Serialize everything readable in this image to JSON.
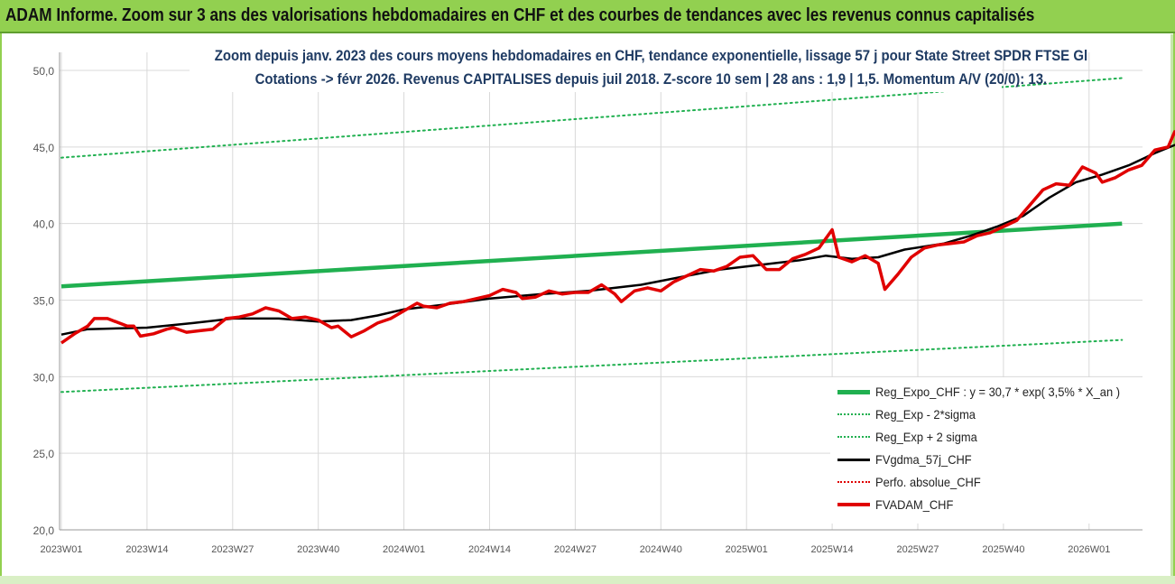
{
  "banner": {
    "title": "ADAM Informe. Zoom sur 3 ans des valorisations hebdomadaires en CHF et des courbes de tendances avec les revenus connus capitalisés"
  },
  "colors": {
    "banner": "#92d050",
    "reg_expo": "#20b050",
    "sigma": "#20b050",
    "fvgdma": "#000000",
    "fvadam": "#e00000",
    "grid": "#d9d9d9"
  },
  "chart_data": {
    "type": "line",
    "title": "Zoom depuis janv. 2023 des cours moyens hebdomadaires en CHF, tendance exponentielle, lissage 57 j pour State Street SPDR FTSE Gl",
    "subtitle": "Cotations -> févr 2026. Revenus CAPITALISES depuis juil 2018. Z-score 10 sem | 28 ans : 1,9 | 1,5. Momentum A/V (20/0): 13.",
    "xlabel": "",
    "ylabel": "",
    "ylim": [
      20,
      50
    ],
    "yticks": [
      "20,0",
      "25,0",
      "30,0",
      "35,0",
      "40,0",
      "45,0",
      "50,0"
    ],
    "xticks": [
      "2023W01",
      "2023W14",
      "2023W27",
      "2023W40",
      "2024W01",
      "2024W14",
      "2024W27",
      "2024W40",
      "2025W01",
      "2025W14",
      "2025W27",
      "2025W40",
      "2026W01"
    ],
    "grid": true,
    "legend_position": "bottom-right",
    "n_weeks": 162,
    "series": [
      {
        "name": "Reg_Expo_CHF : y = 30,7 * exp( 3,5% *  X_an )",
        "style": "thick-solid",
        "color": "#20b050",
        "points": [
          [
            0,
            35.9
          ],
          [
            161,
            40.0
          ]
        ]
      },
      {
        "name": "Reg_Exp - 2*sigma",
        "style": "dotted",
        "color": "#20b050",
        "points": [
          [
            0,
            29.0
          ],
          [
            161,
            32.4
          ]
        ]
      },
      {
        "name": "Reg_Exp + 2 sigma",
        "style": "dotted",
        "color": "#20b050",
        "points": [
          [
            0,
            44.3
          ],
          [
            161,
            49.5
          ]
        ]
      },
      {
        "name": "FVgdma_57j_CHF",
        "style": "solid",
        "color": "#000000",
        "points": [
          [
            0,
            32.75
          ],
          [
            4,
            33.1
          ],
          [
            13,
            33.2
          ],
          [
            20,
            33.5
          ],
          [
            26,
            33.8
          ],
          [
            33,
            33.8
          ],
          [
            39,
            33.6
          ],
          [
            44,
            33.7
          ],
          [
            48,
            34.0
          ],
          [
            52,
            34.4
          ],
          [
            58,
            34.7
          ],
          [
            65,
            35.1
          ],
          [
            73,
            35.4
          ],
          [
            80,
            35.6
          ],
          [
            88,
            36.0
          ],
          [
            94,
            36.5
          ],
          [
            100,
            37.0
          ],
          [
            106,
            37.3
          ],
          [
            112,
            37.6
          ],
          [
            116,
            37.9
          ],
          [
            120,
            37.7
          ],
          [
            124,
            37.8
          ],
          [
            128,
            38.3
          ],
          [
            134,
            38.7
          ],
          [
            138,
            39.2
          ],
          [
            142,
            39.8
          ],
          [
            146,
            40.5
          ],
          [
            150,
            41.7
          ],
          [
            154,
            42.7
          ],
          [
            158,
            43.2
          ],
          [
            162,
            43.8
          ],
          [
            166,
            44.6
          ],
          [
            170,
            45.3
          ],
          [
            174,
            45.7
          ]
        ]
      },
      {
        "name": "Perfo. absolue_CHF",
        "style": "dotted",
        "color": "#e00000",
        "points": []
      },
      {
        "name": "FVADAM_CHF",
        "style": "thick-solid",
        "color": "#e00000",
        "points": [
          [
            0,
            32.2
          ],
          [
            2,
            32.8
          ],
          [
            4,
            33.3
          ],
          [
            5,
            33.8
          ],
          [
            7,
            33.8
          ],
          [
            10,
            33.3
          ],
          [
            11,
            33.3
          ],
          [
            12,
            32.65
          ],
          [
            14,
            32.8
          ],
          [
            16,
            33.1
          ],
          [
            17,
            33.2
          ],
          [
            19,
            32.9
          ],
          [
            21,
            33.0
          ],
          [
            23,
            33.1
          ],
          [
            25,
            33.8
          ],
          [
            27,
            33.9
          ],
          [
            29,
            34.1
          ],
          [
            31,
            34.5
          ],
          [
            33,
            34.3
          ],
          [
            35,
            33.8
          ],
          [
            37,
            33.9
          ],
          [
            39,
            33.7
          ],
          [
            41,
            33.2
          ],
          [
            42,
            33.3
          ],
          [
            44,
            32.6
          ],
          [
            46,
            33.0
          ],
          [
            48,
            33.5
          ],
          [
            50,
            33.8
          ],
          [
            52,
            34.3
          ],
          [
            54,
            34.8
          ],
          [
            55,
            34.6
          ],
          [
            57,
            34.5
          ],
          [
            59,
            34.8
          ],
          [
            61,
            34.9
          ],
          [
            63,
            35.1
          ],
          [
            65,
            35.3
          ],
          [
            67,
            35.7
          ],
          [
            69,
            35.5
          ],
          [
            70,
            35.1
          ],
          [
            72,
            35.2
          ],
          [
            74,
            35.6
          ],
          [
            76,
            35.4
          ],
          [
            78,
            35.5
          ],
          [
            80,
            35.5
          ],
          [
            82,
            36.0
          ],
          [
            84,
            35.4
          ],
          [
            85,
            34.9
          ],
          [
            87,
            35.6
          ],
          [
            89,
            35.8
          ],
          [
            91,
            35.6
          ],
          [
            93,
            36.2
          ],
          [
            95,
            36.6
          ],
          [
            97,
            37.0
          ],
          [
            99,
            36.9
          ],
          [
            101,
            37.2
          ],
          [
            103,
            37.8
          ],
          [
            105,
            37.9
          ],
          [
            107,
            37.0
          ],
          [
            109,
            37.0
          ],
          [
            111,
            37.7
          ],
          [
            113,
            38.0
          ],
          [
            115,
            38.4
          ],
          [
            117,
            39.6
          ],
          [
            118,
            37.8
          ],
          [
            120,
            37.5
          ],
          [
            122,
            37.9
          ],
          [
            124,
            37.4
          ],
          [
            125,
            35.7
          ],
          [
            127,
            36.7
          ],
          [
            129,
            37.8
          ],
          [
            131,
            38.4
          ],
          [
            133,
            38.6
          ],
          [
            135,
            38.7
          ],
          [
            137,
            38.8
          ],
          [
            139,
            39.2
          ],
          [
            141,
            39.4
          ],
          [
            143,
            39.8
          ],
          [
            145,
            40.2
          ],
          [
            147,
            41.2
          ],
          [
            149,
            42.2
          ],
          [
            151,
            42.6
          ],
          [
            153,
            42.5
          ],
          [
            155,
            43.7
          ],
          [
            157,
            43.3
          ],
          [
            158,
            42.7
          ],
          [
            160,
            43.0
          ],
          [
            162,
            43.5
          ],
          [
            164,
            43.8
          ],
          [
            166,
            44.8
          ],
          [
            168,
            45.0
          ],
          [
            169,
            46.0
          ],
          [
            170,
            45.7
          ],
          [
            172,
            46.3
          ],
          [
            174,
            46.8
          ]
        ]
      }
    ]
  }
}
